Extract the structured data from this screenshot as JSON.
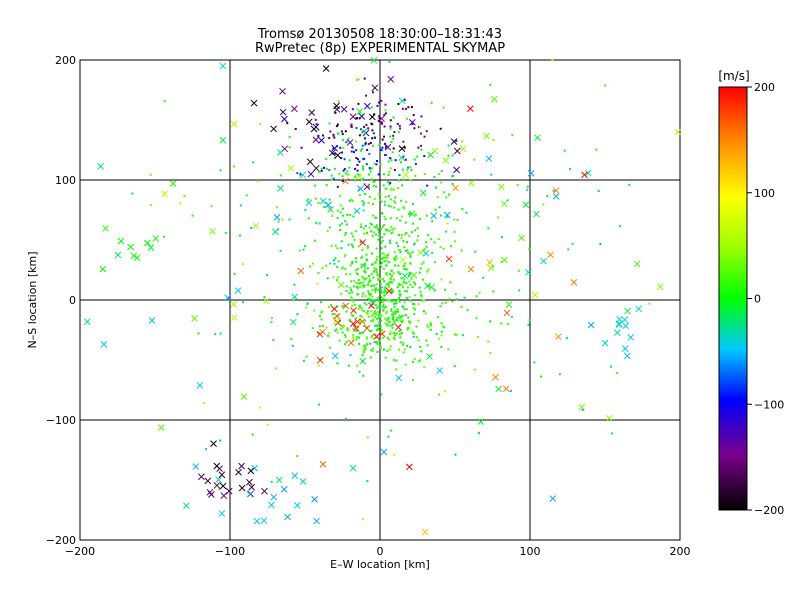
{
  "chart_data": {
    "type": "scatter",
    "title": "Tromsø 20130508 18:30:00–18:31:43",
    "subtitle": "RwPretec (8p) EXPERIMENTAL SKYMAP",
    "xlabel": "E–W location [km]",
    "ylabel": "N–S location [km]",
    "xlim": [
      -200,
      200
    ],
    "ylim": [
      -200,
      200
    ],
    "xticks": [
      -200,
      -100,
      0,
      100,
      200
    ],
    "yticks": [
      -200,
      -100,
      0,
      100,
      200
    ],
    "xtick_labels": [
      "−200",
      "−100",
      "0",
      "100",
      "200"
    ],
    "ytick_labels": [
      "−200",
      "−100",
      "0",
      "100",
      "200"
    ],
    "grid": true,
    "colorbar": {
      "label": "[m/s]",
      "range": [
        -200,
        200
      ],
      "ticks": [
        -200,
        -100,
        0,
        100,
        200
      ],
      "tick_labels": [
        "−200",
        "−100",
        "0",
        "100",
        "200"
      ],
      "colormap": "rainbow (black-purple-blue-cyan-green-yellow-red)"
    },
    "marker_types": [
      "dot",
      "cross"
    ],
    "clusters": [
      {
        "marker": "dot",
        "center": [
          3,
          10
        ],
        "spread": [
          16,
          30
        ],
        "n": 420,
        "velocity": [
          -10,
          30
        ]
      },
      {
        "marker": "dot",
        "center": [
          0,
          80
        ],
        "spread": [
          20,
          35
        ],
        "n": 200,
        "velocity": [
          -20,
          30
        ]
      },
      {
        "marker": "dot",
        "center": [
          0,
          -20
        ],
        "spread": [
          22,
          14
        ],
        "n": 180,
        "velocity": [
          -10,
          40
        ]
      },
      {
        "marker": "dot",
        "center": [
          -5,
          145
        ],
        "spread": [
          22,
          12
        ],
        "n": 90,
        "velocity": [
          -200,
          -130
        ]
      },
      {
        "marker": "dot",
        "center": [
          -8,
          120
        ],
        "spread": [
          20,
          12
        ],
        "n": 60,
        "velocity": [
          -120,
          -70
        ]
      },
      {
        "marker": "dot",
        "center": [
          5,
          50
        ],
        "spread": [
          55,
          60
        ],
        "n": 170,
        "velocity": [
          -30,
          40
        ]
      },
      {
        "marker": "dot",
        "center": [
          0,
          0
        ],
        "spread": [
          90,
          90
        ],
        "n": 110,
        "velocity": [
          -60,
          60
        ]
      },
      {
        "marker": "cross",
        "center": [
          -100,
          -150
        ],
        "spread": [
          15,
          8
        ],
        "n": 20,
        "velocity": [
          -200,
          -140
        ]
      },
      {
        "marker": "cross",
        "center": [
          -70,
          -165
        ],
        "spread": [
          20,
          15
        ],
        "n": 18,
        "velocity": [
          -60,
          -20
        ]
      },
      {
        "marker": "cross",
        "center": [
          -25,
          -25
        ],
        "spread": [
          15,
          15
        ],
        "n": 18,
        "velocity": [
          150,
          200
        ]
      },
      {
        "marker": "cross",
        "center": [
          165,
          -25
        ],
        "spread": [
          12,
          10
        ],
        "n": 12,
        "velocity": [
          -60,
          -20
        ]
      },
      {
        "marker": "cross",
        "center": [
          -160,
          45
        ],
        "spread": [
          18,
          15
        ],
        "n": 10,
        "velocity": [
          -20,
          20
        ]
      },
      {
        "marker": "cross",
        "center": [
          -20,
          140
        ],
        "spread": [
          35,
          30
        ],
        "n": 40,
        "velocity": [
          -200,
          -100
        ]
      },
      {
        "marker": "cross",
        "center": [
          0,
          40
        ],
        "spread": [
          100,
          100
        ],
        "n": 110,
        "velocity": [
          -60,
          60
        ]
      },
      {
        "marker": "cross",
        "center": [
          60,
          10
        ],
        "spread": [
          70,
          80
        ],
        "n": 20,
        "velocity": [
          120,
          200
        ]
      }
    ]
  }
}
